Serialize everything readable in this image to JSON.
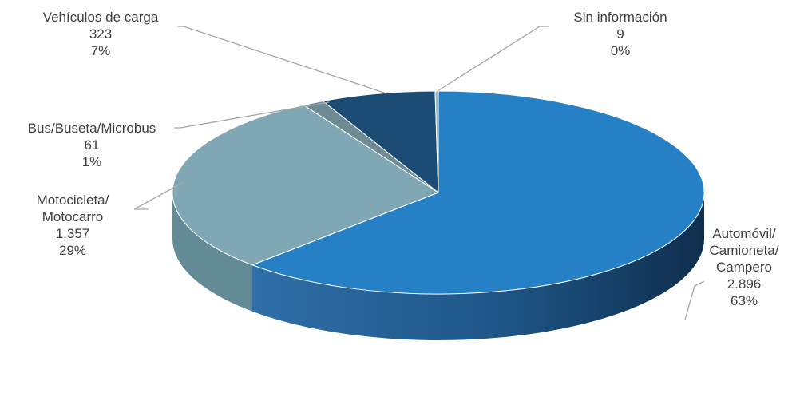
{
  "chart_data": {
    "type": "pie",
    "three_d": true,
    "legend": "none",
    "slices": [
      {
        "name": "Automóvil/\nCamioneta/\nCampero",
        "value": 2896,
        "value_label": "2.896",
        "percent_label": "63%",
        "color": "#2680c6",
        "side_color": "#1a5f96"
      },
      {
        "name": "Motocicleta/\nMotocarro",
        "value": 1357,
        "value_label": "1.357",
        "percent_label": "29%",
        "color": "#7fa8b4",
        "side_color": "#638b96"
      },
      {
        "name": "Bus/Buseta/Microbus",
        "value": 61,
        "value_label": "61",
        "percent_label": "1%",
        "color": "#6e8a92",
        "side_color": "#55707a"
      },
      {
        "name": "Vehículos de carga",
        "value": 323,
        "value_label": "323",
        "percent_label": "7%",
        "color": "#1c4b73",
        "side_color": "#143957"
      },
      {
        "name": "Sin información",
        "value": 9,
        "value_label": "9",
        "percent_label": "0%",
        "color": "#9bb8c8",
        "side_color": "#7a98a8"
      }
    ]
  }
}
